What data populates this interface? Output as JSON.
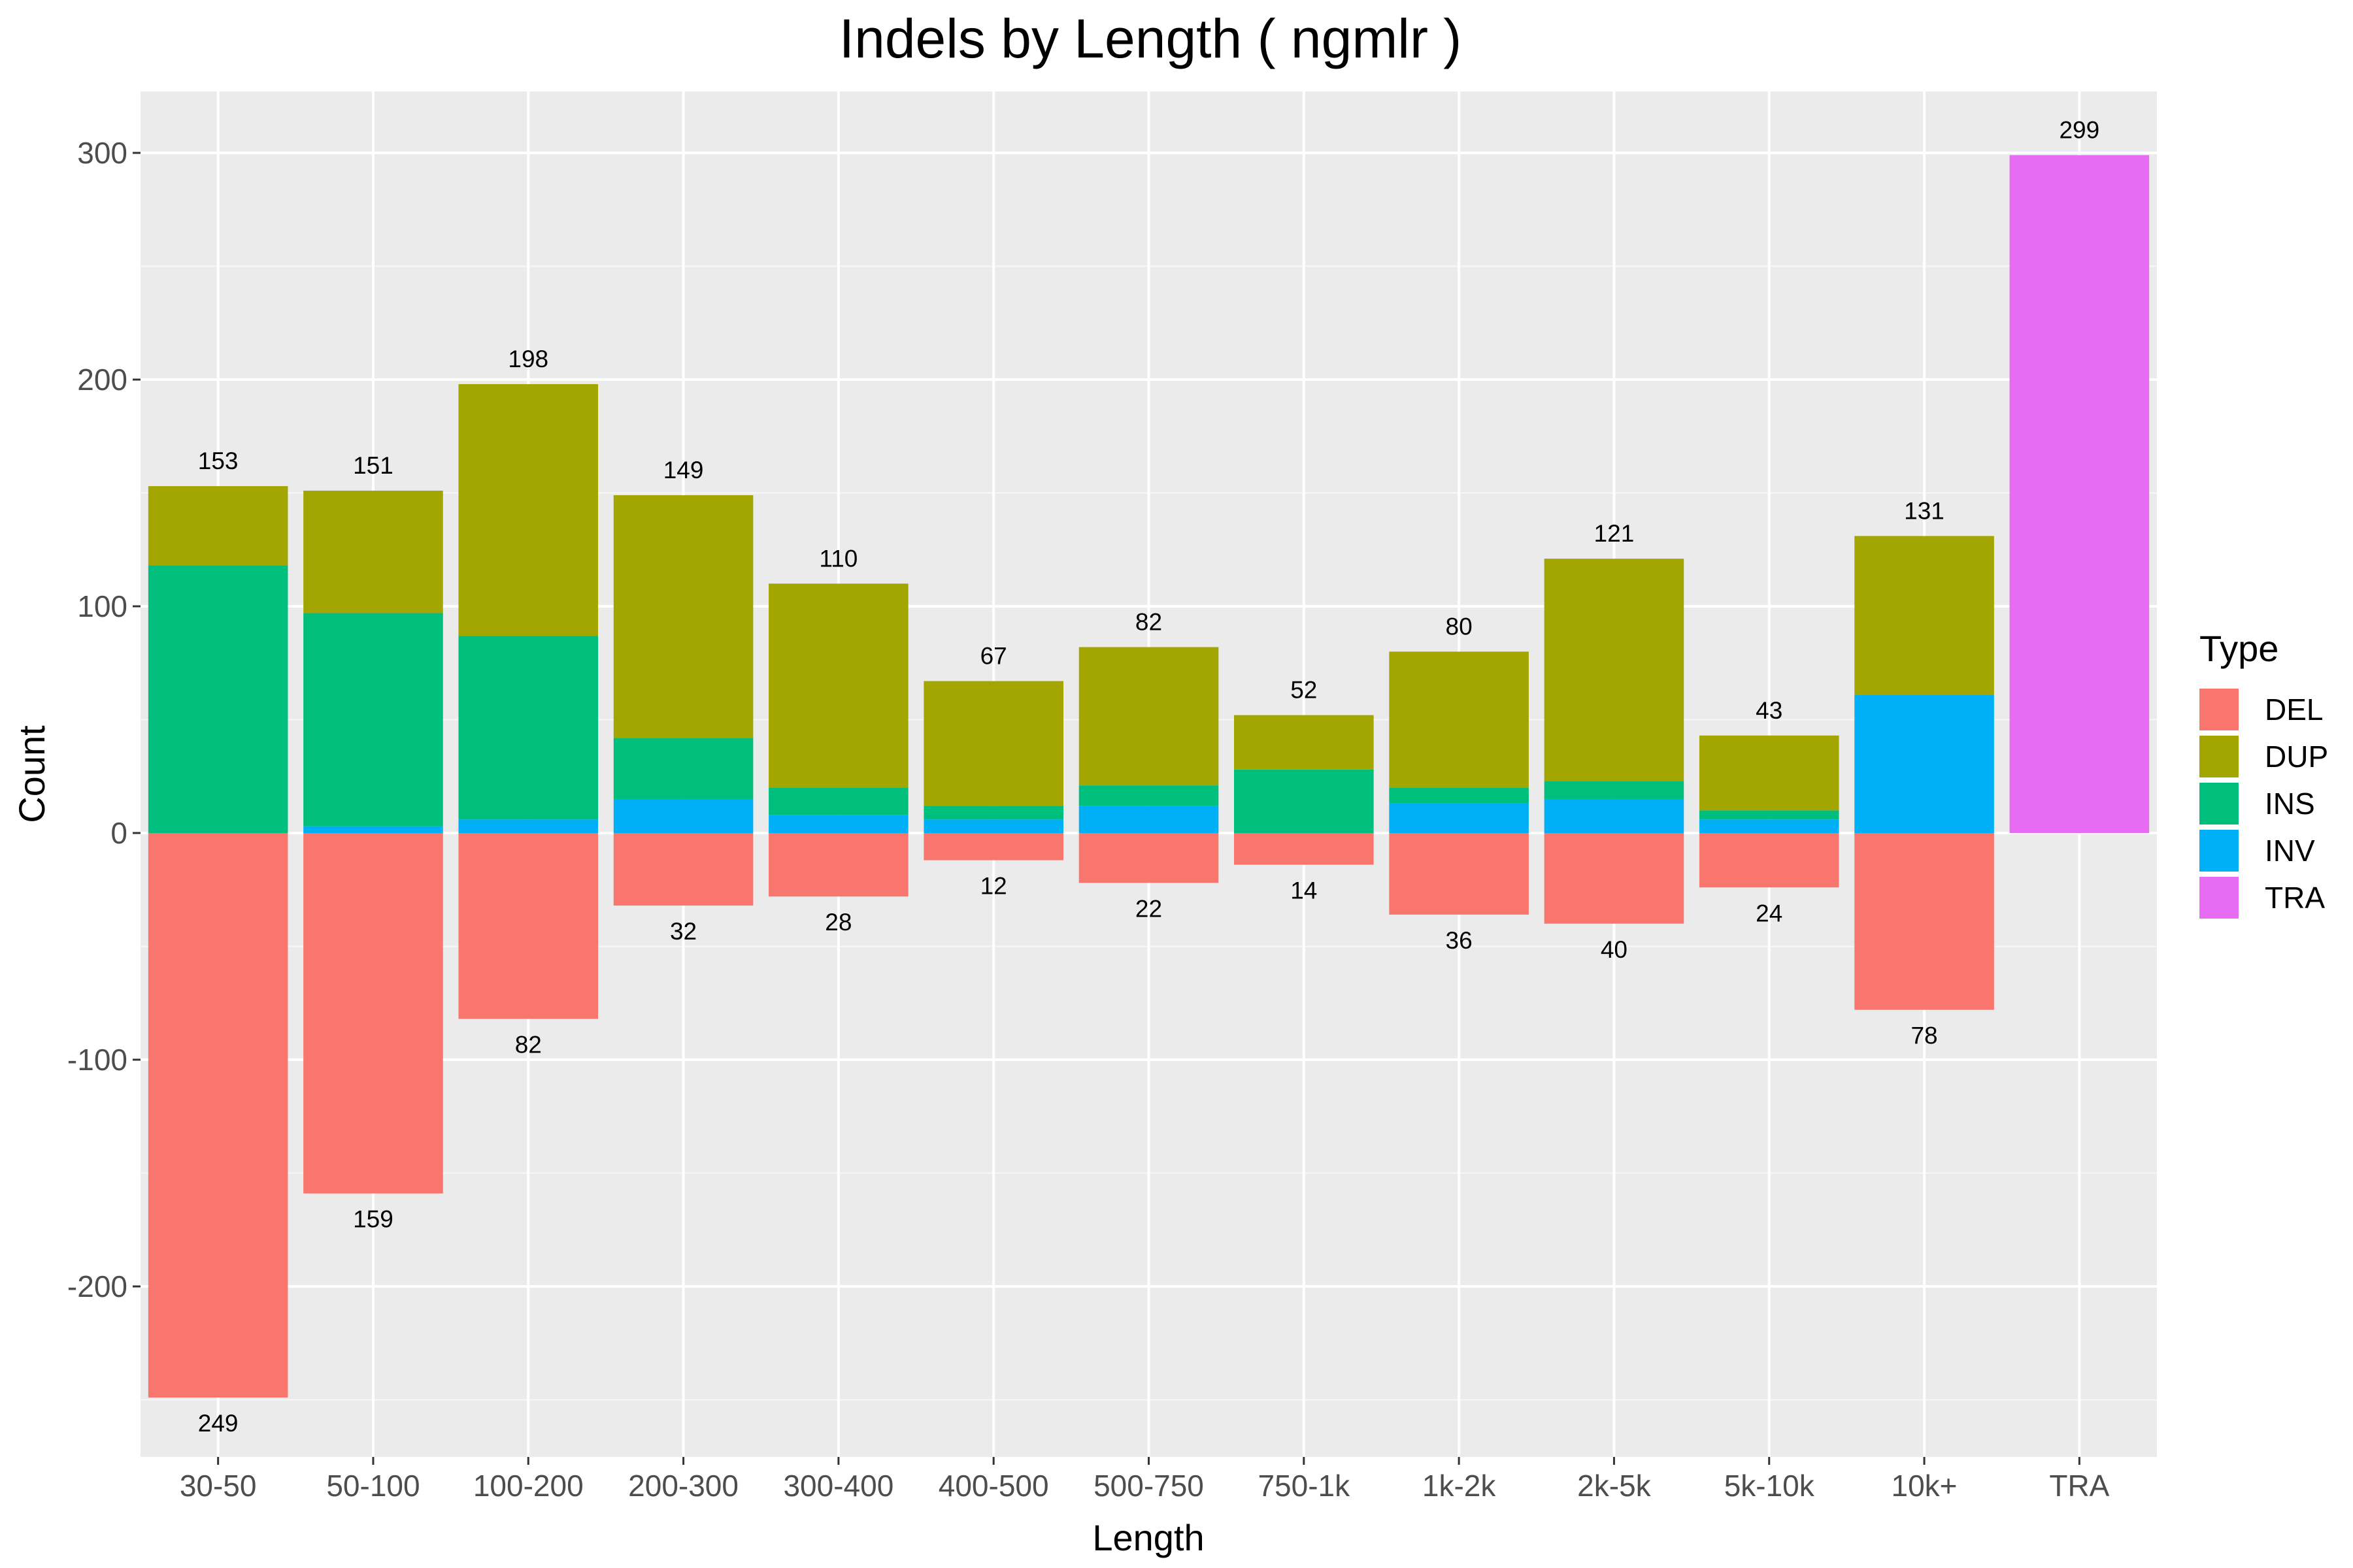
{
  "chart_data": {
    "type": "bar",
    "stacked": true,
    "title": "Indels by Length ( ngmlr )",
    "xlabel": "Length",
    "ylabel": "Count",
    "ylim": [
      -265,
      325
    ],
    "yticks": [
      -200,
      -100,
      0,
      100,
      200,
      300
    ],
    "grid": true,
    "legend": {
      "title": "Type",
      "position": "right",
      "entries": [
        "DEL",
        "DUP",
        "INS",
        "INV",
        "TRA"
      ]
    },
    "categories": [
      "30-50",
      "50-100",
      "100-200",
      "200-300",
      "300-400",
      "400-500",
      "500-750",
      "750-1k",
      "1k-2k",
      "2k-5k",
      "5k-10k",
      "10k+",
      "TRA"
    ],
    "series": [
      {
        "name": "DEL",
        "color": "#F8766D",
        "values": [
          -249,
          -159,
          -82,
          -32,
          -28,
          -12,
          -22,
          -14,
          -36,
          -40,
          -24,
          -78,
          0
        ]
      },
      {
        "name": "INV",
        "color": "#00B0F6",
        "values": [
          0,
          3,
          6,
          15,
          8,
          6,
          12,
          0,
          13,
          15,
          6,
          61,
          0
        ]
      },
      {
        "name": "INS",
        "color": "#00BF7D",
        "values": [
          118,
          94,
          81,
          27,
          12,
          6,
          9,
          28,
          7,
          8,
          4,
          0,
          0
        ]
      },
      {
        "name": "DUP",
        "color": "#A3A500",
        "values": [
          35,
          54,
          111,
          107,
          90,
          55,
          61,
          24,
          60,
          98,
          33,
          70,
          0
        ]
      },
      {
        "name": "TRA",
        "color": "#E76BF3",
        "values": [
          0,
          0,
          0,
          0,
          0,
          0,
          0,
          0,
          0,
          0,
          0,
          0,
          299
        ]
      }
    ],
    "positive_totals": [
      153,
      151,
      198,
      149,
      110,
      67,
      82,
      52,
      80,
      121,
      43,
      131,
      299
    ],
    "negative_labels": [
      249,
      159,
      82,
      32,
      28,
      12,
      22,
      14,
      36,
      40,
      24,
      78,
      null
    ]
  }
}
